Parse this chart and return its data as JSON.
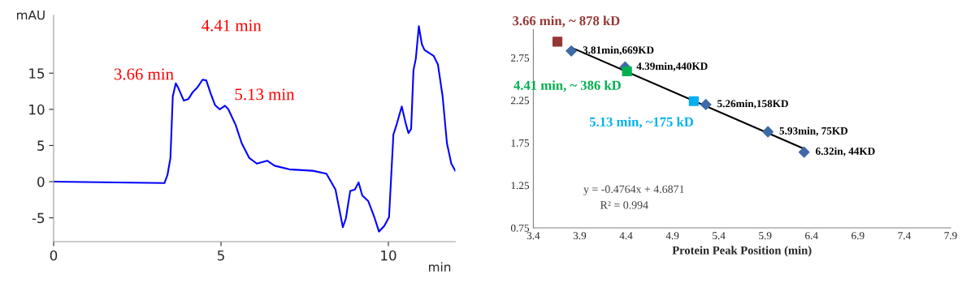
{
  "chart_data": [
    {
      "type": "line",
      "xlabel": "min",
      "ylabel": "mAU",
      "xlim": [
        0,
        12.0
      ],
      "ylim": [
        -8.3,
        23
      ],
      "xticks": [
        0,
        5,
        10
      ],
      "yticks": [
        -5,
        0,
        5,
        10,
        15
      ],
      "series": [
        {
          "color": "#0000ff",
          "x": [
            0,
            3.31,
            3.4,
            3.49,
            3.56,
            3.65,
            3.71,
            3.89,
            4.02,
            4.16,
            4.29,
            4.45,
            4.56,
            4.69,
            4.82,
            4.96,
            5.12,
            5.22,
            5.44,
            5.62,
            5.84,
            6.07,
            6.38,
            6.6,
            7.04,
            7.75,
            8.15,
            8.42,
            8.64,
            8.73,
            8.86,
            9.0,
            9.11,
            9.22,
            9.4,
            9.58,
            9.72,
            9.88,
            10.02,
            10.15,
            10.24,
            10.4,
            10.51,
            10.6,
            10.68,
            10.75,
            10.82,
            10.91,
            11.0,
            11.08,
            11.35,
            11.48,
            11.62,
            11.75,
            11.88,
            12.0
          ],
          "values": [
            0,
            -0.2,
            0.9,
            3.3,
            11.8,
            13.6,
            13.1,
            11.2,
            11.4,
            12.4,
            13.0,
            14.1,
            14.0,
            12.2,
            10.6,
            10.0,
            10.5,
            10.0,
            7.8,
            5.3,
            3.3,
            2.5,
            2.9,
            2.2,
            1.7,
            1.5,
            1.1,
            -1.1,
            -6.3,
            -5.1,
            -1.3,
            -1.1,
            -0.1,
            -1.9,
            -2.7,
            -4.9,
            -6.9,
            -6.1,
            -4.9,
            6.5,
            7.8,
            10.4,
            8.2,
            6.7,
            7.3,
            15.4,
            17.0,
            21.5,
            19.0,
            18.2,
            17.4,
            16.2,
            11.8,
            5.3,
            2.5,
            1.5
          ]
        }
      ],
      "annotations": [
        {
          "text": "3.66 min",
          "x": 3.66,
          "y": 13.6
        },
        {
          "text": "4.41 min",
          "x": 4.41,
          "y": 14.1
        },
        {
          "text": "5.13 min",
          "x": 5.13,
          "y": 10.5
        }
      ]
    },
    {
      "type": "scatter",
      "xlabel": "Protein Peak Position (min)",
      "xlim": [
        3.4,
        7.9
      ],
      "ylim": [
        0.75,
        3.08
      ],
      "xticks": [
        3.4,
        3.9,
        4.4,
        4.9,
        5.4,
        5.9,
        6.4,
        6.9,
        7.4,
        7.9
      ],
      "yticks": [
        0.75,
        1.25,
        1.75,
        2.25,
        2.75
      ],
      "series": [
        {
          "type": "line",
          "color": "#000000",
          "x": [
            3.81,
            6.32
          ],
          "values": [
            2.87,
            1.68
          ],
          "marker": "none"
        },
        {
          "color": "#3e6aa8",
          "marker": "diamond",
          "x": [
            3.81,
            4.39,
            5.26,
            5.93,
            6.32
          ],
          "values": [
            2.83,
            2.64,
            2.2,
            1.88,
            1.64
          ],
          "value_labels": [
            "3.81min,669KD",
            "4.39min,440KD",
            "5.26min,158KD",
            "5.93min, 75KD",
            "6.32in, 44KD"
          ]
        },
        {
          "color": "#953735",
          "marker": "square",
          "x": [
            3.66
          ],
          "values": [
            2.94
          ],
          "value_labels": [
            "3.66 min, ~ 878 kD"
          ]
        },
        {
          "color": "#00b050",
          "marker": "square",
          "x": [
            4.41
          ],
          "values": [
            2.59
          ],
          "value_labels": [
            "4.41 min, ~ 386 kD"
          ]
        },
        {
          "color": "#00b0f0",
          "marker": "square",
          "x": [
            5.13
          ],
          "values": [
            2.24
          ],
          "value_labels": [
            "5.13 min, ~175 kD"
          ]
        }
      ],
      "annotations": [
        "y = -0.4764x + 4.6871",
        "R² = 0.994"
      ]
    }
  ]
}
